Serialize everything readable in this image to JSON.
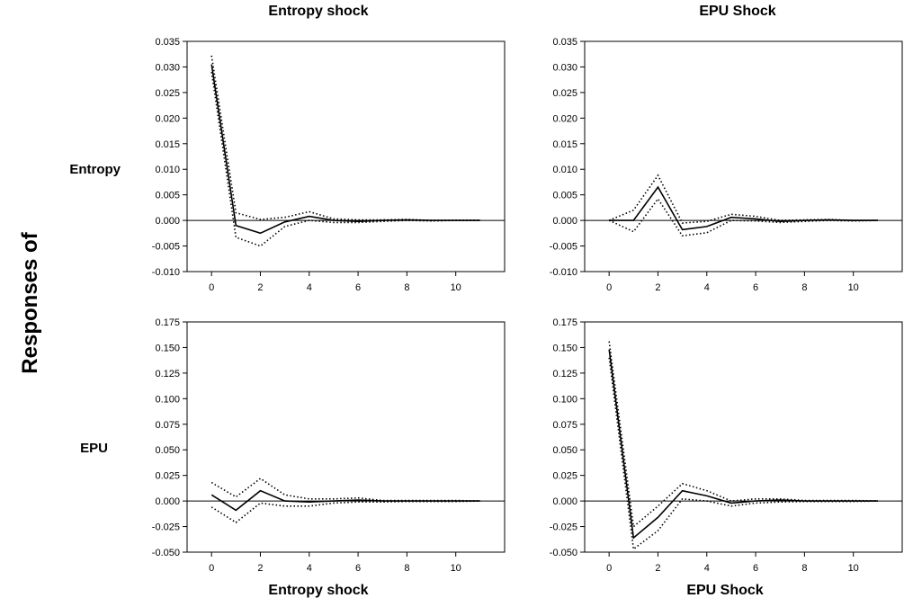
{
  "labels": {
    "col_titles_top": [
      "Entropy shock",
      "EPU Shock"
    ],
    "col_titles_bottom": [
      "Entropy shock",
      "EPU Shock"
    ],
    "row_labels": [
      "Entropy",
      "EPU"
    ],
    "side_label": "Responses of"
  },
  "chart_data": [
    {
      "type": "line",
      "title": "Entropy shock",
      "row": "Entropy",
      "x": [
        0,
        1,
        2,
        3,
        4,
        5,
        6,
        7,
        8,
        9,
        10,
        11
      ],
      "xticks": [
        0,
        2,
        4,
        6,
        8,
        10
      ],
      "xlim": [
        -1,
        12
      ],
      "ylim": [
        -0.01,
        0.035
      ],
      "yticks": [
        -0.01,
        -0.005,
        0.0,
        0.005,
        0.01,
        0.015,
        0.02,
        0.025,
        0.03,
        0.035
      ],
      "ytick_decimals": 3,
      "series": [
        {
          "values": [
            0.0305,
            -0.001,
            -0.0025,
            -0.0003,
            0.0008,
            0.0,
            -0.0002,
            0.0,
            0.0001,
            0.0,
            0.0,
            0.0
          ],
          "style": "solid"
        },
        {
          "values": [
            0.0322,
            0.0015,
            0.0002,
            0.0006,
            0.0017,
            0.0003,
            0.0001,
            0.0001,
            0.0002,
            0.0,
            0.0,
            0.0
          ],
          "style": "dotted"
        },
        {
          "values": [
            0.029,
            -0.0033,
            -0.005,
            -0.0012,
            0.0,
            -0.0004,
            -0.0004,
            -0.0002,
            0.0,
            -0.0001,
            0.0,
            0.0
          ],
          "style": "dotted"
        }
      ]
    },
    {
      "type": "line",
      "title": "EPU Shock",
      "row": "Entropy",
      "x": [
        0,
        1,
        2,
        3,
        4,
        5,
        6,
        7,
        8,
        9,
        10,
        11
      ],
      "xticks": [
        0,
        2,
        4,
        6,
        8,
        10
      ],
      "xlim": [
        -1,
        12
      ],
      "ylim": [
        -0.01,
        0.035
      ],
      "yticks": [
        -0.01,
        -0.005,
        0.0,
        0.005,
        0.01,
        0.015,
        0.02,
        0.025,
        0.03,
        0.035
      ],
      "ytick_decimals": 3,
      "series": [
        {
          "values": [
            0.0,
            0.0,
            0.0065,
            -0.0018,
            -0.0012,
            0.0006,
            0.0003,
            -0.0002,
            0.0,
            0.0001,
            0.0,
            0.0
          ],
          "style": "solid"
        },
        {
          "values": [
            0.0,
            0.002,
            0.0088,
            -0.0005,
            -0.0002,
            0.0012,
            0.0008,
            0.0,
            0.0001,
            0.0002,
            0.0,
            0.0
          ],
          "style": "dotted"
        },
        {
          "values": [
            0.0,
            -0.0022,
            0.0042,
            -0.003,
            -0.0024,
            0.0,
            -0.0001,
            -0.0004,
            -0.0002,
            0.0,
            -0.0001,
            0.0
          ],
          "style": "dotted"
        }
      ]
    },
    {
      "type": "line",
      "title": "Entropy shock",
      "row": "EPU",
      "x": [
        0,
        1,
        2,
        3,
        4,
        5,
        6,
        7,
        8,
        9,
        10,
        11
      ],
      "xticks": [
        0,
        2,
        4,
        6,
        8,
        10
      ],
      "xlim": [
        -1,
        12
      ],
      "ylim": [
        -0.05,
        0.175
      ],
      "yticks": [
        -0.05,
        -0.025,
        0.0,
        0.025,
        0.05,
        0.075,
        0.1,
        0.125,
        0.15,
        0.175
      ],
      "ytick_decimals": 3,
      "series": [
        {
          "values": [
            0.006,
            -0.009,
            0.01,
            0.0,
            -0.001,
            0.0,
            0.001,
            0.0,
            0.0,
            0.0,
            0.0,
            0.0
          ],
          "style": "solid"
        },
        {
          "values": [
            0.018,
            0.004,
            0.022,
            0.006,
            0.002,
            0.002,
            0.003,
            0.0005,
            0.0005,
            0.0005,
            0.0005,
            0.0
          ],
          "style": "dotted"
        },
        {
          "values": [
            -0.006,
            -0.021,
            -0.002,
            -0.005,
            -0.005,
            -0.002,
            -0.001,
            -0.001,
            -0.0005,
            -0.0005,
            -0.0005,
            0.0
          ],
          "style": "dotted"
        }
      ]
    },
    {
      "type": "line",
      "title": "EPU Shock",
      "row": "EPU",
      "x": [
        0,
        1,
        2,
        3,
        4,
        5,
        6,
        7,
        8,
        9,
        10,
        11
      ],
      "xticks": [
        0,
        2,
        4,
        6,
        8,
        10
      ],
      "xlim": [
        -1,
        12
      ],
      "ylim": [
        -0.05,
        0.175
      ],
      "yticks": [
        -0.05,
        -0.025,
        0.0,
        0.025,
        0.05,
        0.075,
        0.1,
        0.125,
        0.15,
        0.175
      ],
      "ytick_decimals": 3,
      "series": [
        {
          "values": [
            0.148,
            -0.036,
            -0.016,
            0.01,
            0.005,
            -0.002,
            0.0,
            0.001,
            0.0,
            0.0,
            0.0,
            0.0
          ],
          "style": "solid"
        },
        {
          "values": [
            0.156,
            -0.025,
            -0.005,
            0.017,
            0.01,
            0.0,
            0.002,
            0.002,
            0.0005,
            0.0005,
            0.0005,
            0.0
          ],
          "style": "dotted"
        },
        {
          "values": [
            0.14,
            -0.047,
            -0.029,
            0.002,
            0.0,
            -0.005,
            -0.002,
            -0.001,
            -0.0005,
            -0.0005,
            -0.0005,
            0.0
          ],
          "style": "dotted"
        }
      ]
    }
  ]
}
